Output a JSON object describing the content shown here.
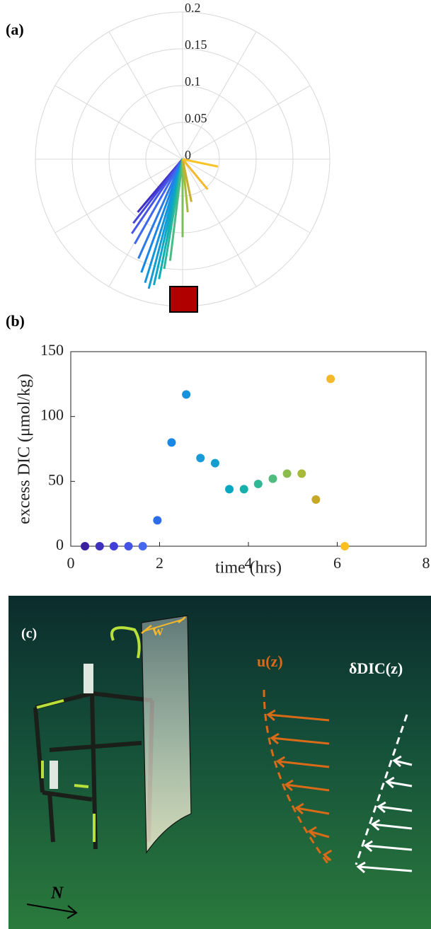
{
  "panels": [
    "(a)",
    "(b)",
    "(c)"
  ],
  "chart_data": [
    {
      "type": "compass",
      "rlim": [
        0,
        0.2
      ],
      "rticks": [
        0,
        0.05,
        0.1,
        0.15,
        0.2
      ],
      "u": [
        -0.053,
        -0.061,
        -0.067,
        -0.069,
        -0.065,
        -0.06,
        -0.056,
        -0.051,
        -0.046,
        -0.039,
        -0.032,
        -0.025,
        -0.017,
        0,
        0.007,
        0.012,
        0.034,
        0.048
      ],
      "v": [
        -0.0625,
        -0.072,
        -0.087,
        -0.101,
        -0.115,
        -0.135,
        -0.154,
        -0.168,
        -0.176,
        -0.171,
        -0.163,
        -0.149,
        -0.138,
        -0.106,
        -0.072,
        -0.058,
        -0.041,
        -0.01
      ],
      "colors": [
        "#3b24a8",
        "#4030c4",
        "#4444dc",
        "#4656e8",
        "#3f68ee",
        "#2a7ae8",
        "#1888e6",
        "#1594de",
        "#129cd6",
        "#0ea6c8",
        "#10aeb4",
        "#28b69c",
        "#48bc84",
        "#7cbd5c",
        "#a4bb3c",
        "#c8ae2c",
        "#f3b82e",
        "#f9c428"
      ]
    },
    {
      "type": "scatter",
      "xlabel": "time (hrs)",
      "ylabel": "excess DIC (μmol/kg)",
      "x": [
        0.32,
        0.65,
        0.97,
        1.3,
        1.62,
        1.95,
        2.27,
        2.6,
        2.92,
        3.25,
        3.57,
        3.9,
        4.22,
        4.55,
        4.87,
        5.2,
        5.52,
        5.85,
        6.17
      ],
      "y": [
        0,
        0,
        0,
        0,
        0,
        20,
        80,
        117,
        68,
        64,
        44,
        44,
        48,
        52,
        56,
        56,
        36,
        129,
        0
      ],
      "colors": [
        "#3b1fa0",
        "#3f30c0",
        "#4040d8",
        "#4452e6",
        "#4668ee",
        "#2c6ee8",
        "#1888e8",
        "#1591de",
        "#1a9ad8",
        "#129fcf",
        "#0aa8c0",
        "#15b0aa",
        "#2fb896",
        "#50bc80",
        "#8cbc50",
        "#a8b838",
        "#c8a828",
        "#f5b82a",
        "#f9c020"
      ],
      "xlim": [
        0,
        8
      ],
      "ylim": [
        0,
        150
      ],
      "xticks": [
        0,
        2,
        4,
        6,
        8
      ],
      "yticks": [
        0,
        50,
        100,
        150
      ]
    }
  ],
  "illustration": {
    "width_label": "w",
    "velocity_label": "u(z)",
    "dic_label": "δDIC(z)",
    "north_label": "N"
  }
}
